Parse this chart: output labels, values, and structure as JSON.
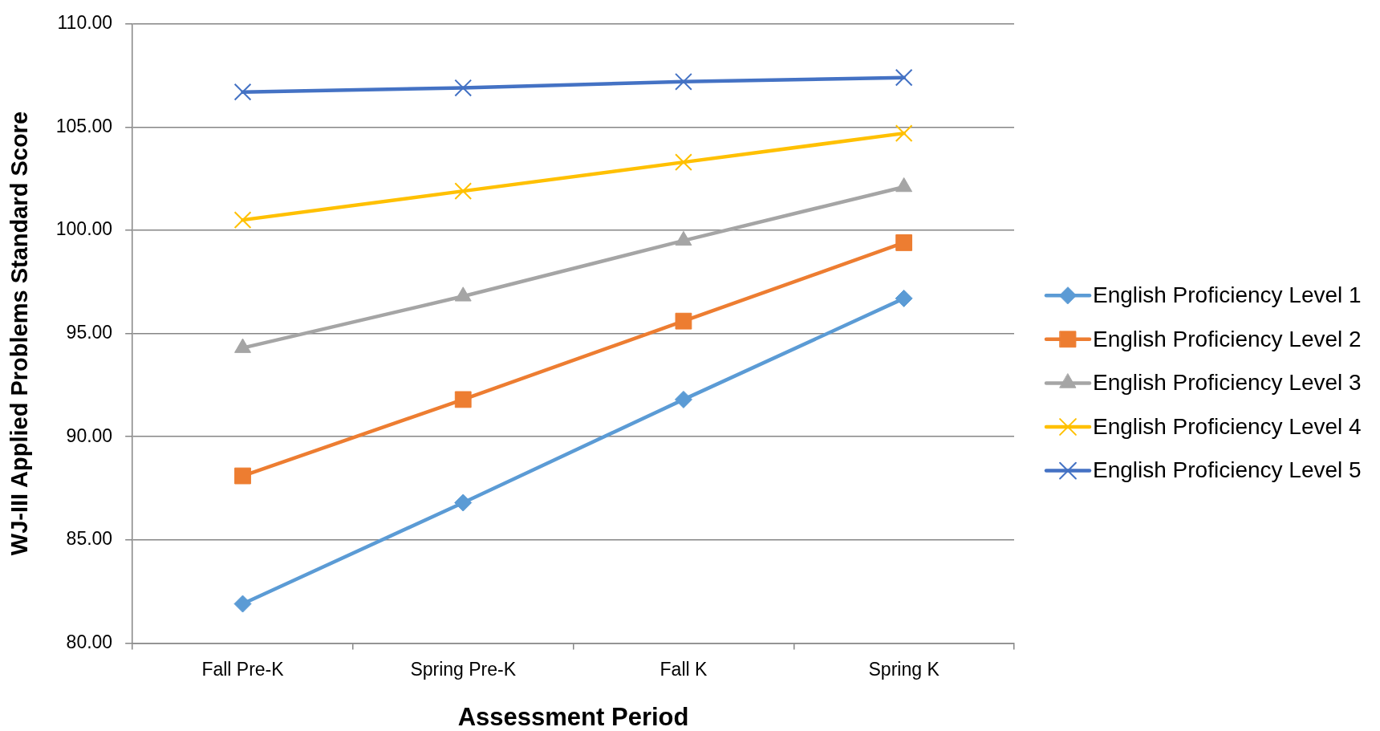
{
  "chart_data": {
    "type": "line",
    "xlabel": "Assessment Period",
    "ylabel": "WJ-III Applied Problems Standard Score",
    "categories": [
      "Fall Pre-K",
      "Spring Pre-K",
      "Fall K",
      "Spring K"
    ],
    "series": [
      {
        "name": "English Proficiency Level 1",
        "color": "#5b9bd5",
        "marker": "diamond",
        "values": [
          81.9,
          86.8,
          91.8,
          96.7
        ]
      },
      {
        "name": "English Proficiency Level 2",
        "color": "#ed7d31",
        "marker": "square",
        "values": [
          88.1,
          91.8,
          95.6,
          99.4
        ]
      },
      {
        "name": "English Proficiency Level 3",
        "color": "#a5a5a5",
        "marker": "triangle",
        "values": [
          94.3,
          96.8,
          99.5,
          102.1
        ]
      },
      {
        "name": "English Proficiency Level 4",
        "color": "#ffc000",
        "marker": "cross",
        "values": [
          100.5,
          101.9,
          103.3,
          104.7
        ]
      },
      {
        "name": "English Proficiency Level 5",
        "color": "#4472c4",
        "marker": "cross",
        "values": [
          106.7,
          106.9,
          107.2,
          107.4
        ]
      }
    ],
    "ylim": [
      80,
      110
    ],
    "yticks": [
      {
        "value": 80,
        "label": "80.00"
      },
      {
        "value": 85,
        "label": "85.00"
      },
      {
        "value": 90,
        "label": "90.00"
      },
      {
        "value": 95,
        "label": "95.00"
      },
      {
        "value": 100,
        "label": "100.00"
      },
      {
        "value": 105,
        "label": "105.00"
      },
      {
        "value": 110,
        "label": "110.00"
      }
    ],
    "grid": "y",
    "legend": "right"
  }
}
